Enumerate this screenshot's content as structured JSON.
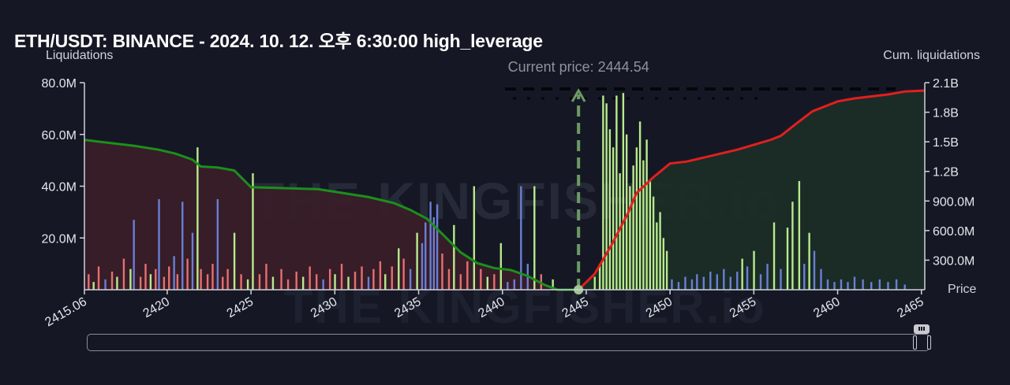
{
  "title": "ETH/USDT: BINANCE - 2024. 10. 12. 오후 6:30:00 high_leverage",
  "chart_data": {
    "type": "bar",
    "title": "ETH/USDT: BINANCE - 2024. 10. 12. 오후 6:30:00 high_leverage",
    "xlabel": "Price",
    "ylabel_left": "Liquidations",
    "ylabel_right": "Cum. liquidations",
    "current_price_label": "Current price: 2444.54",
    "current_price": 2444.54,
    "x_range": [
      2415.06,
      2465.2
    ],
    "x_ticks": [
      "2415.06",
      "2420",
      "2425",
      "2430",
      "2435",
      "2440",
      "2445",
      "2450",
      "2455",
      "2460",
      "2465"
    ],
    "x_tick_values": [
      2415.06,
      2420,
      2425,
      2430,
      2435,
      2440,
      2445,
      2450,
      2455,
      2460,
      2465
    ],
    "y_left_range": [
      0,
      80000000
    ],
    "y_left_ticks": [
      "20.0M",
      "40.0M",
      "60.0M",
      "80.0M"
    ],
    "y_left_tick_values": [
      20000000,
      40000000,
      60000000,
      80000000
    ],
    "y_right_range": [
      0,
      2100000000
    ],
    "y_right_ticks": [
      "300.0M",
      "600.0M",
      "900.0M",
      "1.2B",
      "1.5B",
      "1.8B",
      "2.1B"
    ],
    "y_right_tick_values": [
      300000000,
      600000000,
      900000000,
      1200000000,
      1500000000,
      1800000000,
      2100000000
    ],
    "watermark": "THE KINGFISHER.io",
    "bars": {
      "long_side": [
        [
          2415.3,
          6,
          "red"
        ],
        [
          2415.6,
          3,
          "green"
        ],
        [
          2415.9,
          9,
          "red"
        ],
        [
          2416.3,
          4,
          "blue"
        ],
        [
          2416.7,
          7,
          "red"
        ],
        [
          2417.0,
          5,
          "green"
        ],
        [
          2417.4,
          12,
          "red"
        ],
        [
          2417.8,
          8,
          "green"
        ],
        [
          2418.0,
          27,
          "blue"
        ],
        [
          2418.4,
          5,
          "red"
        ],
        [
          2418.7,
          10,
          "red"
        ],
        [
          2419.0,
          6,
          "green"
        ],
        [
          2419.3,
          8,
          "red"
        ],
        [
          2419.5,
          35,
          "blue"
        ],
        [
          2419.8,
          5,
          "red"
        ],
        [
          2420.1,
          9,
          "red"
        ],
        [
          2420.4,
          13,
          "blue"
        ],
        [
          2420.6,
          6,
          "red"
        ],
        [
          2420.9,
          34,
          "blue"
        ],
        [
          2421.2,
          12,
          "red"
        ],
        [
          2421.5,
          22,
          "blue"
        ],
        [
          2421.8,
          55,
          "green"
        ],
        [
          2422.0,
          8,
          "red"
        ],
        [
          2422.4,
          6,
          "red"
        ],
        [
          2422.7,
          10,
          "red"
        ],
        [
          2423.0,
          35,
          "blue"
        ],
        [
          2423.3,
          5,
          "red"
        ],
        [
          2423.6,
          8,
          "red"
        ],
        [
          2424.0,
          22,
          "green"
        ],
        [
          2424.4,
          6,
          "red"
        ],
        [
          2424.8,
          4,
          "green"
        ],
        [
          2425.1,
          45,
          "green"
        ],
        [
          2425.5,
          6,
          "red"
        ],
        [
          2425.9,
          10,
          "red"
        ],
        [
          2426.3,
          5,
          "green"
        ],
        [
          2426.8,
          8,
          "red"
        ],
        [
          2427.2,
          4,
          "red"
        ],
        [
          2427.7,
          7,
          "red"
        ],
        [
          2428.1,
          5,
          "green"
        ],
        [
          2428.5,
          9,
          "red"
        ],
        [
          2428.9,
          6,
          "red"
        ],
        [
          2429.3,
          4,
          "blue"
        ],
        [
          2429.7,
          8,
          "red"
        ],
        [
          2430.0,
          6,
          "green"
        ],
        [
          2430.4,
          10,
          "red"
        ],
        [
          2430.8,
          5,
          "green"
        ],
        [
          2431.2,
          7,
          "red"
        ],
        [
          2431.6,
          9,
          "red"
        ],
        [
          2432.0,
          5,
          "blue"
        ],
        [
          2432.3,
          8,
          "red"
        ],
        [
          2432.7,
          11,
          "red"
        ],
        [
          2433.0,
          6,
          "green"
        ],
        [
          2433.4,
          9,
          "red"
        ],
        [
          2433.8,
          16,
          "green"
        ],
        [
          2434.1,
          12,
          "red"
        ],
        [
          2434.5,
          8,
          "blue"
        ],
        [
          2434.9,
          22,
          "green"
        ],
        [
          2435.2,
          18,
          "blue"
        ],
        [
          2435.4,
          26,
          "blue"
        ],
        [
          2435.7,
          34,
          "blue"
        ],
        [
          2435.9,
          28,
          "blue"
        ],
        [
          2436.1,
          33,
          "blue"
        ],
        [
          2436.4,
          14,
          "red"
        ],
        [
          2436.8,
          8,
          "red"
        ],
        [
          2437.1,
          25,
          "green"
        ],
        [
          2437.5,
          6,
          "red"
        ],
        [
          2437.9,
          11,
          "red"
        ],
        [
          2438.3,
          40,
          "green"
        ],
        [
          2438.7,
          8,
          "red"
        ],
        [
          2439.1,
          5,
          "green"
        ],
        [
          2439.5,
          6,
          "red"
        ],
        [
          2439.9,
          18,
          "green"
        ],
        [
          2440.3,
          3,
          "blue"
        ],
        [
          2440.7,
          4,
          "blue"
        ],
        [
          2441.1,
          40,
          "blue"
        ],
        [
          2441.5,
          10,
          "blue"
        ],
        [
          2441.9,
          40,
          "green"
        ],
        [
          2442.3,
          6,
          "red"
        ],
        [
          2443.0,
          4,
          "green"
        ]
      ],
      "short_side": [
        [
          2445.5,
          5,
          "green"
        ],
        [
          2445.8,
          10,
          "green"
        ],
        [
          2446.0,
          75,
          "green"
        ],
        [
          2446.2,
          72,
          "green"
        ],
        [
          2446.4,
          62,
          "green"
        ],
        [
          2446.6,
          55,
          "green"
        ],
        [
          2446.8,
          75,
          "green"
        ],
        [
          2447.0,
          45,
          "green"
        ],
        [
          2447.2,
          76,
          "green"
        ],
        [
          2447.4,
          60,
          "green"
        ],
        [
          2447.6,
          40,
          "green"
        ],
        [
          2447.8,
          48,
          "green"
        ],
        [
          2448.0,
          55,
          "green"
        ],
        [
          2448.2,
          65,
          "green"
        ],
        [
          2448.4,
          50,
          "green"
        ],
        [
          2448.6,
          58,
          "green"
        ],
        [
          2448.8,
          42,
          "green"
        ],
        [
          2449.0,
          36,
          "green"
        ],
        [
          2449.2,
          26,
          "green"
        ],
        [
          2449.4,
          30,
          "green"
        ],
        [
          2449.6,
          20,
          "green"
        ],
        [
          2449.8,
          15,
          "green"
        ],
        [
          2450.1,
          4,
          "blue"
        ],
        [
          2450.5,
          3,
          "blue"
        ],
        [
          2450.9,
          5,
          "blue"
        ],
        [
          2451.3,
          4,
          "blue"
        ],
        [
          2451.6,
          6,
          "blue"
        ],
        [
          2452.0,
          5,
          "blue"
        ],
        [
          2452.4,
          7,
          "blue"
        ],
        [
          2452.8,
          6,
          "blue"
        ],
        [
          2453.2,
          8,
          "blue"
        ],
        [
          2453.6,
          5,
          "blue"
        ],
        [
          2454.0,
          7,
          "blue"
        ],
        [
          2454.3,
          12,
          "green"
        ],
        [
          2454.6,
          9,
          "blue"
        ],
        [
          2455.0,
          15,
          "green"
        ],
        [
          2455.4,
          6,
          "blue"
        ],
        [
          2455.8,
          10,
          "blue"
        ],
        [
          2456.2,
          26,
          "green"
        ],
        [
          2456.6,
          8,
          "blue"
        ],
        [
          2457.0,
          24,
          "green"
        ],
        [
          2457.3,
          34,
          "green"
        ],
        [
          2457.7,
          42,
          "green"
        ],
        [
          2458.0,
          10,
          "blue"
        ],
        [
          2458.3,
          22,
          "green"
        ],
        [
          2458.6,
          15,
          "blue"
        ],
        [
          2459.0,
          8,
          "blue"
        ],
        [
          2459.4,
          4,
          "blue"
        ],
        [
          2459.8,
          3,
          "blue"
        ],
        [
          2460.2,
          4,
          "blue"
        ],
        [
          2460.6,
          3,
          "blue"
        ],
        [
          2461.0,
          5,
          "blue"
        ],
        [
          2461.5,
          4,
          "blue"
        ],
        [
          2462.0,
          3,
          "blue"
        ],
        [
          2462.5,
          4,
          "blue"
        ],
        [
          2463.0,
          3,
          "blue"
        ],
        [
          2463.5,
          4,
          "blue"
        ],
        [
          2464.0,
          2,
          "blue"
        ]
      ]
    },
    "cumulative_long": [
      [
        2415.06,
        1.52
      ],
      [
        2416.5,
        1.49
      ],
      [
        2418,
        1.46
      ],
      [
        2419.5,
        1.42
      ],
      [
        2420.5,
        1.38
      ],
      [
        2421.5,
        1.32
      ],
      [
        2422,
        1.25
      ],
      [
        2423,
        1.24
      ],
      [
        2424,
        1.21
      ],
      [
        2425,
        1.04
      ],
      [
        2427,
        1.03
      ],
      [
        2429,
        1.02
      ],
      [
        2430.5,
        0.98
      ],
      [
        2432,
        0.94
      ],
      [
        2433.5,
        0.88
      ],
      [
        2434.5,
        0.81
      ],
      [
        2435.5,
        0.72
      ],
      [
        2436.5,
        0.55
      ],
      [
        2437.5,
        0.38
      ],
      [
        2438.5,
        0.27
      ],
      [
        2439.5,
        0.22
      ],
      [
        2440.5,
        0.2
      ],
      [
        2441.5,
        0.14
      ],
      [
        2442.5,
        0.05
      ],
      [
        2443.3,
        0.0
      ],
      [
        2444.54,
        0.0
      ]
    ],
    "cumulative_short": [
      [
        2444.54,
        0.0
      ],
      [
        2445.5,
        0.16
      ],
      [
        2446.5,
        0.45
      ],
      [
        2447.5,
        0.78
      ],
      [
        2448,
        0.98
      ],
      [
        2449,
        1.14
      ],
      [
        2450,
        1.28
      ],
      [
        2451,
        1.3
      ],
      [
        2452,
        1.34
      ],
      [
        2453,
        1.38
      ],
      [
        2454,
        1.42
      ],
      [
        2455,
        1.47
      ],
      [
        2456,
        1.52
      ],
      [
        2456.6,
        1.56
      ],
      [
        2457.5,
        1.68
      ],
      [
        2458.5,
        1.81
      ],
      [
        2460,
        1.91
      ],
      [
        2461,
        1.94
      ],
      [
        2462,
        1.96
      ],
      [
        2463,
        1.98
      ],
      [
        2464,
        2.01
      ],
      [
        2465.2,
        2.02
      ]
    ],
    "cumulative_units": "B"
  },
  "colors": {
    "background": "#151824",
    "long_area": "#3a1e29",
    "short_area": "#1c2e27",
    "long_line": "#1c8f1c",
    "short_line": "#e11f1f",
    "bar_green": "#b8ea8c",
    "bar_red": "#e66f6f",
    "bar_blue": "#6a7fd4",
    "current_price": "#6c9a64",
    "axis": "#cfd2da"
  }
}
